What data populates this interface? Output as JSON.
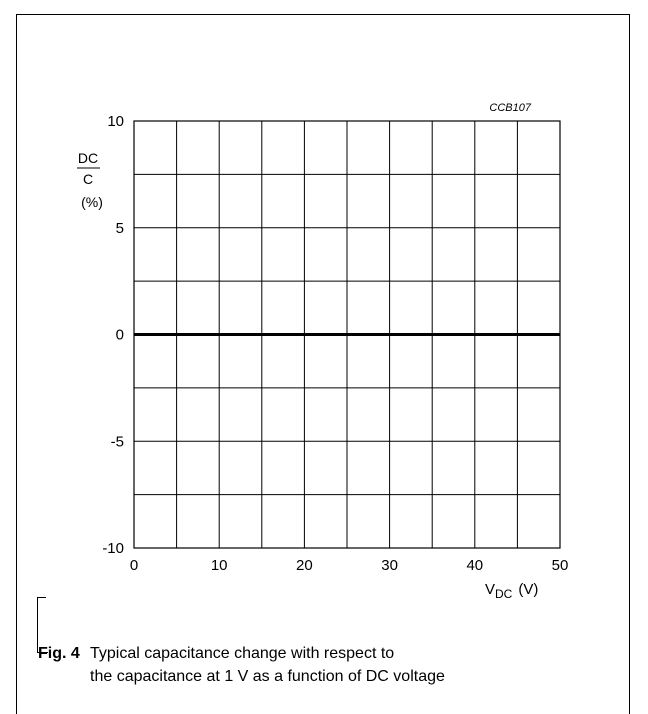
{
  "figure_code": "CCB107",
  "chart_data": {
    "type": "line",
    "xlim": [
      0,
      50
    ],
    "ylim": [
      -10,
      10
    ],
    "x_ticks": [
      0,
      10,
      20,
      30,
      40,
      50
    ],
    "x_tick_labels": [
      "0",
      "10",
      "20",
      "30",
      "40",
      "50"
    ],
    "y_ticks": [
      10,
      5,
      0,
      -5,
      -10
    ],
    "y_tick_labels": [
      "10",
      "5",
      "0",
      "-5",
      "-10"
    ],
    "x_grid_step": 5,
    "y_grid_step": 2.5,
    "grid": true,
    "ylabel_numerator": "DC",
    "ylabel_denominator": "C",
    "ylabel_unit": "(%)",
    "xlabel_main": "V",
    "xlabel_sub": "DC",
    "xlabel_unit": "(V)",
    "series": [
      {
        "x": [
          0,
          50
        ],
        "y": [
          0,
          0
        ]
      }
    ]
  },
  "caption": {
    "figure_label": "Fig. 4",
    "line1": "Typical capacitance change with respect to",
    "line2": "the capacitance at 1 V as a function of DC voltage"
  }
}
